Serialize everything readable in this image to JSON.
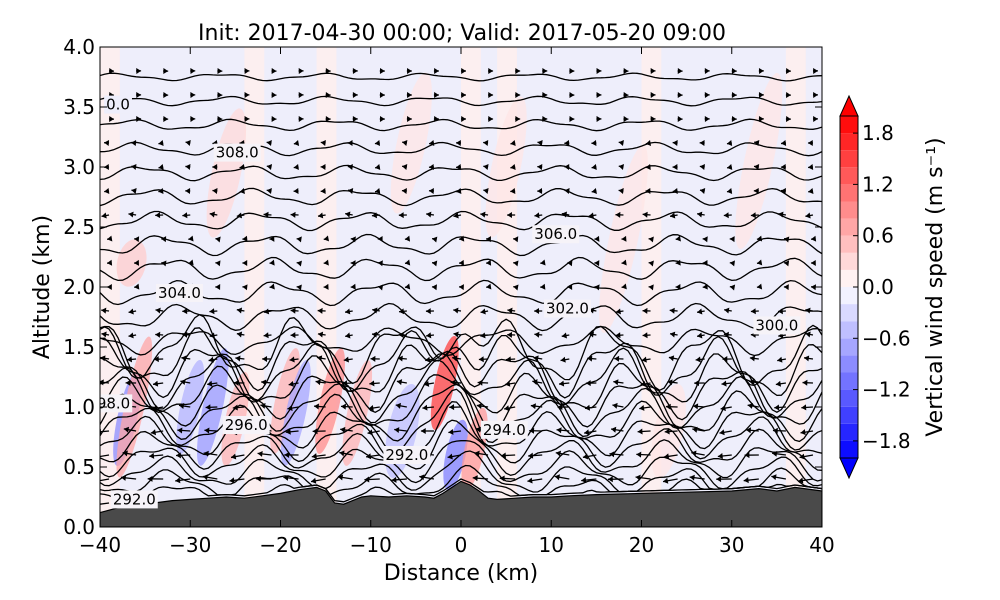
{
  "chart_data": {
    "type": "heatmap",
    "title": "Init: 2017-04-30 00:00; Valid: 2017-05-20 09:00",
    "xlabel": "Distance (km)",
    "ylabel": "Altitude (km)",
    "xlim": [
      -40,
      40
    ],
    "ylim": [
      0.0,
      4.0
    ],
    "x_ticks": [
      -40,
      -30,
      -20,
      -10,
      0,
      10,
      20,
      30,
      40
    ],
    "x_tick_labels": [
      "−40",
      "−30",
      "−20",
      "−10",
      "0",
      "10",
      "20",
      "30",
      "40"
    ],
    "y_ticks": [
      0.0,
      0.5,
      1.0,
      1.5,
      2.0,
      2.5,
      3.0,
      3.5,
      4.0
    ],
    "y_tick_labels": [
      "0.0",
      "0.5",
      "1.0",
      "1.5",
      "2.0",
      "2.5",
      "3.0",
      "3.5",
      "4.0"
    ],
    "grid": false,
    "colorbar": {
      "label": "Vertical wind speed (m s⁻¹)",
      "range": [
        -2.0,
        2.0
      ],
      "extend": "both",
      "ticks": [
        1.8,
        1.2,
        0.6,
        0.0,
        -0.6,
        -1.2,
        -1.8
      ],
      "tick_labels": [
        "1.8",
        "1.2",
        "0.6",
        "0.0",
        "−0.6",
        "−1.2",
        "−1.8"
      ],
      "colormap": "bwr"
    },
    "colors": {
      "terrain": "#4a4a4a",
      "positive": "#ff0000",
      "negative": "#0000ff",
      "neutral": "#ffffff",
      "contour": "#000000"
    },
    "terrain": {
      "x": [
        -40,
        -38,
        -36,
        -34,
        -32,
        -30,
        -28,
        -26,
        -24,
        -22,
        -20,
        -18,
        -16,
        -15,
        -14,
        -13,
        -12,
        -11,
        -10,
        -8,
        -6,
        -4,
        -3,
        -2,
        -1,
        0,
        1,
        2,
        3,
        4,
        6,
        8,
        10,
        12,
        15,
        20,
        25,
        30,
        33,
        35,
        37,
        40
      ],
      "y": [
        0.12,
        0.16,
        0.18,
        0.2,
        0.22,
        0.23,
        0.24,
        0.25,
        0.24,
        0.26,
        0.28,
        0.31,
        0.33,
        0.3,
        0.2,
        0.19,
        0.22,
        0.25,
        0.26,
        0.25,
        0.26,
        0.25,
        0.24,
        0.28,
        0.33,
        0.38,
        0.35,
        0.3,
        0.24,
        0.23,
        0.24,
        0.25,
        0.25,
        0.26,
        0.27,
        0.28,
        0.29,
        0.3,
        0.32,
        0.3,
        0.33,
        0.3
      ]
    },
    "contour_labels": [
      {
        "text": "0.0",
        "x": -38.0,
        "y": 3.52
      },
      {
        "text": "308.0",
        "x": -24.8,
        "y": 3.12
      },
      {
        "text": "306.0",
        "x": 10.5,
        "y": 2.44
      },
      {
        "text": "304.0",
        "x": -31.2,
        "y": 1.95
      },
      {
        "text": "302.0",
        "x": 11.8,
        "y": 1.82
      },
      {
        "text": "300.0",
        "x": 35.0,
        "y": 1.68
      },
      {
        "text": "98.0",
        "x": -38.5,
        "y": 1.03
      },
      {
        "text": "296.0",
        "x": -23.8,
        "y": 0.85
      },
      {
        "text": "294.0",
        "x": 4.8,
        "y": 0.81
      },
      {
        "text": "292.0",
        "x": -6.0,
        "y": 0.6
      },
      {
        "text": "292.0",
        "x": -36.2,
        "y": 0.23
      }
    ],
    "wind_color_features": [
      {
        "x": -37.0,
        "y0": 0.5,
        "y1": 1.3,
        "w": -0.9
      },
      {
        "x": -36.2,
        "y0": 0.4,
        "y1": 1.6,
        "w": 0.7
      },
      {
        "x": -30.0,
        "y0": 0.6,
        "y1": 1.4,
        "w": -0.6
      },
      {
        "x": -27.5,
        "y0": 0.5,
        "y1": 1.5,
        "w": -0.8
      },
      {
        "x": -25.0,
        "y0": 0.5,
        "y1": 1.3,
        "w": 0.6
      },
      {
        "x": -19.5,
        "y0": 0.6,
        "y1": 1.5,
        "w": 0.6
      },
      {
        "x": -18.3,
        "y0": 0.5,
        "y1": 1.4,
        "w": -0.7
      },
      {
        "x": -14.5,
        "y0": 0.6,
        "y1": 1.5,
        "w": 0.9
      },
      {
        "x": -11.5,
        "y0": 0.5,
        "y1": 1.4,
        "w": 0.6
      },
      {
        "x": -6.5,
        "y0": 0.4,
        "y1": 1.2,
        "w": -0.5
      },
      {
        "x": -1.8,
        "y0": 0.8,
        "y1": 1.6,
        "w": 1.5
      },
      {
        "x": -0.6,
        "y0": 0.3,
        "y1": 0.9,
        "w": -1.0
      },
      {
        "x": 1.5,
        "y0": 0.3,
        "y1": 1.0,
        "w": 0.8
      },
      {
        "x": -36.5,
        "y0": 2.0,
        "y1": 2.4,
        "w": 0.4
      },
      {
        "x": -26.0,
        "y0": 2.4,
        "y1": 3.5,
        "w": 0.3
      },
      {
        "x": -5.5,
        "y0": 2.6,
        "y1": 3.8,
        "w": 0.2
      },
      {
        "x": 5.0,
        "y0": 2.4,
        "y1": 3.6,
        "w": 0.2
      },
      {
        "x": 18.0,
        "y0": 1.6,
        "y1": 3.2,
        "w": 0.2
      },
      {
        "x": 23.0,
        "y0": 0.4,
        "y1": 1.2,
        "w": 0.2
      },
      {
        "x": 33.0,
        "y0": 2.3,
        "y1": 3.8,
        "w": 0.2
      }
    ]
  }
}
